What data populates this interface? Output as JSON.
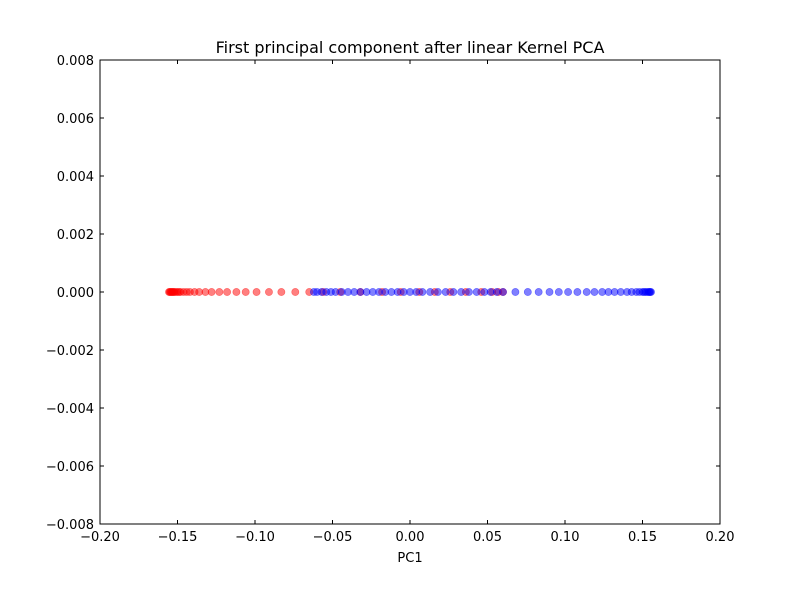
{
  "chart_data": {
    "type": "scatter",
    "title": "First principal component after linear Kernel PCA",
    "xlabel": "PC1",
    "ylabel": "",
    "xlim": [
      -0.2,
      0.2
    ],
    "ylim": [
      -0.008,
      0.008
    ],
    "xticks": [
      "−0.20",
      "−0.15",
      "−0.10",
      "−0.05",
      "0.00",
      "0.05",
      "0.10",
      "0.15",
      "0.20"
    ],
    "xtick_values": [
      -0.2,
      -0.15,
      -0.1,
      -0.05,
      0.0,
      0.05,
      0.1,
      0.15,
      0.2
    ],
    "yticks": [
      "0.008",
      "0.006",
      "0.004",
      "0.002",
      "0.000",
      "−0.002",
      "−0.004",
      "−0.006",
      "−0.008"
    ],
    "ytick_values": [
      0.008,
      0.006,
      0.004,
      0.002,
      0.0,
      -0.002,
      -0.004,
      -0.006,
      -0.008
    ],
    "grid": false,
    "series": [
      {
        "color": "#ff0000",
        "x": [
          -0.1555,
          -0.155,
          -0.1545,
          -0.154,
          -0.1535,
          -0.153,
          -0.1525,
          -0.152,
          -0.151,
          -0.15,
          -0.149,
          -0.148,
          -0.146,
          -0.144,
          -0.142,
          -0.139,
          -0.136,
          -0.132,
          -0.128,
          -0.123,
          -0.118,
          -0.112,
          -0.106,
          -0.099,
          -0.091,
          -0.083,
          -0.074,
          -0.065,
          -0.056,
          -0.045,
          -0.032,
          -0.018,
          -0.006,
          0.006,
          0.016,
          0.026,
          0.036,
          0.046,
          0.053,
          0.057,
          0.06
        ],
        "y": [
          0,
          0,
          0,
          0,
          0,
          0,
          0,
          0,
          0,
          0,
          0,
          0,
          0,
          0,
          0,
          0,
          0,
          0,
          0,
          0,
          0,
          0,
          0,
          0,
          0,
          0,
          0,
          0,
          0,
          0,
          0,
          0,
          0,
          0,
          0,
          0,
          0,
          0,
          0,
          0,
          0
        ]
      },
      {
        "color": "#0000ff",
        "x": [
          -0.062,
          -0.06,
          -0.057,
          -0.054,
          -0.051,
          -0.048,
          -0.044,
          -0.04,
          -0.036,
          -0.032,
          -0.028,
          -0.024,
          -0.02,
          -0.016,
          -0.012,
          -0.008,
          -0.004,
          0.0,
          0.004,
          0.008,
          0.013,
          0.018,
          0.023,
          0.028,
          0.033,
          0.038,
          0.043,
          0.048,
          0.052,
          0.056,
          0.06,
          0.068,
          0.076,
          0.083,
          0.09,
          0.096,
          0.102,
          0.108,
          0.114,
          0.119,
          0.124,
          0.128,
          0.132,
          0.136,
          0.14,
          0.143,
          0.146,
          0.148,
          0.15,
          0.151,
          0.152,
          0.153,
          0.154,
          0.1545,
          0.155,
          0.1555
        ],
        "y": [
          0,
          0,
          0,
          0,
          0,
          0,
          0,
          0,
          0,
          0,
          0,
          0,
          0,
          0,
          0,
          0,
          0,
          0,
          0,
          0,
          0,
          0,
          0,
          0,
          0,
          0,
          0,
          0,
          0,
          0,
          0,
          0,
          0,
          0,
          0,
          0,
          0,
          0,
          0,
          0,
          0,
          0,
          0,
          0,
          0,
          0,
          0,
          0,
          0,
          0,
          0,
          0,
          0,
          0,
          0,
          0
        ]
      }
    ],
    "marker_alpha": 0.5
  }
}
